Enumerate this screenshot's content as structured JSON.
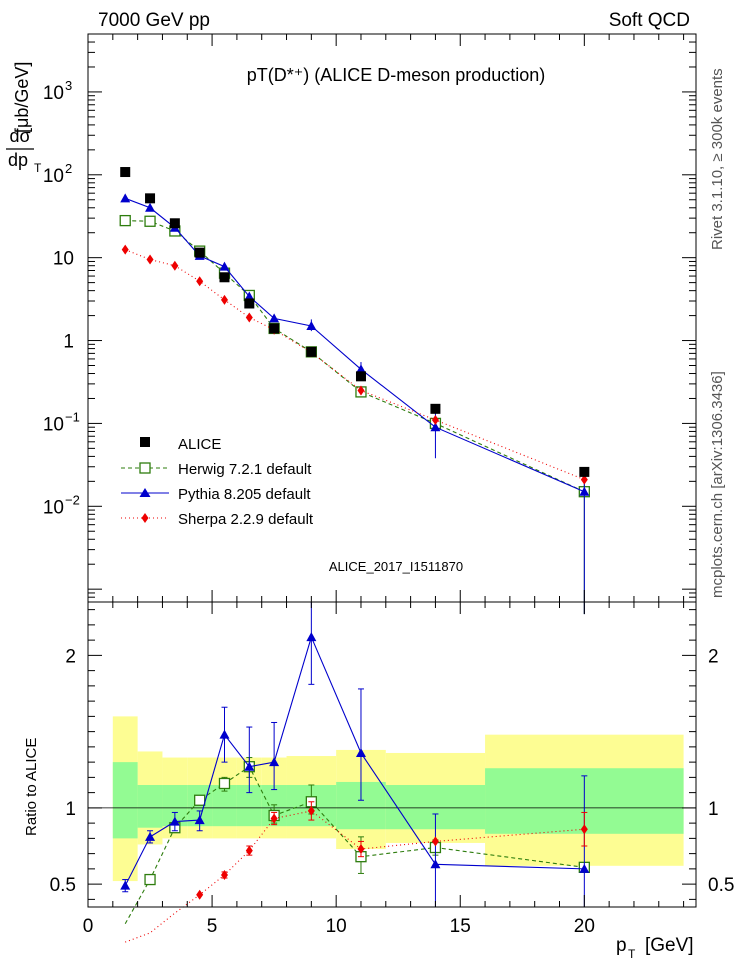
{
  "header": {
    "left": "7000 GeV pp",
    "right": "Soft QCD",
    "title": "pT(D*⁺) (ALICE D-meson production)",
    "side_top": "Rivet 3.1.10, ≥ 300k events",
    "side_bottom": "mcplots.cern.ch [arXiv:1306.3436]",
    "analysis": "ALICE_2017_I1511870"
  },
  "chart_data": {
    "type": "scatter",
    "title": "pT(D*⁺) (ALICE D-meson production)",
    "ylabel_main": "dσ/dp_T [μb/GeV]",
    "ylabel_ratio": "Ratio to ALICE",
    "xlabel": "p_T [GeV]",
    "xlim": [
      0,
      24.5
    ],
    "ylim_main": [
      0.0007,
      5000
    ],
    "ylim_ratio": [
      0.35,
      2.35
    ],
    "yscale_main": "log",
    "x_ticks": [
      0,
      5,
      10,
      15,
      20
    ],
    "main_ticks": [
      {
        "v": 0.01,
        "base": "10",
        "exp": "−2"
      },
      {
        "v": 0.1,
        "base": "10",
        "exp": "−1"
      },
      {
        "v": 1,
        "base": "1",
        "exp": ""
      },
      {
        "v": 10,
        "base": "10",
        "exp": ""
      },
      {
        "v": 100,
        "base": "10",
        "exp": "2"
      },
      {
        "v": 1000,
        "base": "10",
        "exp": "3"
      }
    ],
    "ratio_ticks": [
      {
        "v": 0.5,
        "label": "0.5"
      },
      {
        "v": 1,
        "label": "1"
      },
      {
        "v": 2,
        "label": "2"
      }
    ],
    "bins": [
      [
        1,
        2
      ],
      [
        2,
        3
      ],
      [
        3,
        4
      ],
      [
        4,
        5
      ],
      [
        5,
        6
      ],
      [
        6,
        7
      ],
      [
        7,
        8
      ],
      [
        8,
        10
      ],
      [
        10,
        12
      ],
      [
        12,
        16
      ],
      [
        16,
        24
      ]
    ],
    "x": [
      1.5,
      2.5,
      3.5,
      4.5,
      5.5,
      6.5,
      7.5,
      9,
      11,
      14,
      20
    ],
    "data": {
      "name": "ALICE",
      "values": [
        108,
        52,
        26,
        11.5,
        5.8,
        2.8,
        1.4,
        0.73,
        0.37,
        0.15,
        0.026
      ]
    },
    "band_stat": [
      [
        0.8,
        1.3
      ],
      [
        0.87,
        1.15
      ],
      [
        0.88,
        1.15
      ],
      [
        0.88,
        1.15
      ],
      [
        0.88,
        1.15
      ],
      [
        0.88,
        1.15
      ],
      [
        0.88,
        1.15
      ],
      [
        0.88,
        1.15
      ],
      [
        0.86,
        1.17
      ],
      [
        0.86,
        1.15
      ],
      [
        0.83,
        1.26
      ]
    ],
    "band_total": [
      [
        0.52,
        1.6
      ],
      [
        0.76,
        1.37
      ],
      [
        0.8,
        1.33
      ],
      [
        0.8,
        1.33
      ],
      [
        0.8,
        1.33
      ],
      [
        0.8,
        1.33
      ],
      [
        0.8,
        1.33
      ],
      [
        0.8,
        1.34
      ],
      [
        0.73,
        1.38
      ],
      [
        0.77,
        1.36
      ],
      [
        0.62,
        1.48
      ]
    ],
    "series": [
      {
        "name": "Herwig 7.2.1 default",
        "color": "#2e7d0e",
        "marker": "open-square",
        "dash": "4,3",
        "values": [
          28,
          27.5,
          21,
          12,
          6.5,
          3.5,
          1.4,
          0.73,
          0.24,
          0.1,
          0.015
        ],
        "ratio": [
          0.24,
          0.53,
          0.87,
          1.05,
          1.16,
          1.27,
          0.95,
          1.04,
          0.68,
          0.74,
          0.61
        ]
      },
      {
        "name": "Pythia 8.205 default",
        "color": "#0000cc",
        "marker": "triangle",
        "dash": "",
        "values": [
          52,
          40,
          23,
          10.5,
          7.8,
          3.4,
          1.85,
          1.5,
          0.45,
          0.09,
          0.015
        ],
        "ratio": [
          0.49,
          0.81,
          0.91,
          0.92,
          1.48,
          1.27,
          1.3,
          2.12,
          1.36,
          0.63,
          0.6
        ]
      },
      {
        "name": "Sherpa 2.2.9 default",
        "color": "#ee0000",
        "marker": "diamond",
        "dash": "1,3",
        "values": [
          12.5,
          9.5,
          8,
          5.2,
          3.1,
          1.9,
          1.35,
          0.72,
          0.25,
          0.11,
          0.021
        ],
        "ratio": [
          0.12,
          0.18,
          0.31,
          0.43,
          0.56,
          0.72,
          0.93,
          0.98,
          0.73,
          0.78,
          0.86
        ]
      }
    ],
    "legend": {
      "placement": "bottom-left",
      "entries": [
        "ALICE",
        "Herwig 7.2.1 default",
        "Pythia 8.205 default",
        "Sherpa 2.2.9 default"
      ]
    }
  }
}
